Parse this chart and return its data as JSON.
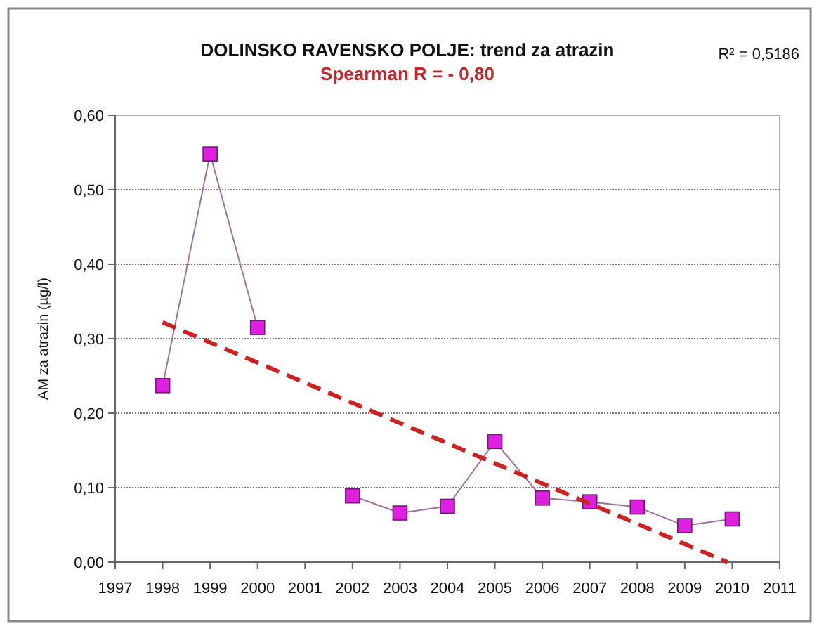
{
  "chart_data": {
    "type": "line",
    "title": "DOLINSKO RAVENSKO POLJE: trend za atrazin",
    "subtitle": "Spearman R = - 0,80",
    "ylabel": "AM za atrazin (µg/l)",
    "annotations": [
      "R² = 0,5186"
    ],
    "x": [
      1998,
      1999,
      2000,
      2001,
      2002,
      2003,
      2004,
      2005,
      2006,
      2007,
      2008,
      2009,
      2010
    ],
    "series": [
      {
        "color": "#e020e0",
        "values": [
          0.237,
          0.548,
          0.315,
          null,
          0.089,
          0.066,
          0.075,
          0.162,
          0.086,
          0.081,
          0.074,
          0.049,
          0.058
        ],
        "marker": "square"
      },
      {
        "type": "line",
        "color": "#cc2222",
        "x": [
          1998,
          2009.9
        ],
        "values": [
          0.322,
          0.0
        ],
        "line_style": "dashed",
        "marker": "none"
      }
    ],
    "xlim": [
      1997,
      2011
    ],
    "xticks": [
      1997,
      1998,
      1999,
      2000,
      2001,
      2002,
      2003,
      2004,
      2005,
      2006,
      2007,
      2008,
      2009,
      2010,
      2011
    ],
    "ylim": [
      0,
      0.6
    ],
    "yticks": [
      {
        "value": 0,
        "label": "0,00"
      },
      {
        "value": 0.1,
        "label": "0,10"
      },
      {
        "value": 0.2,
        "label": "0,20"
      },
      {
        "value": 0.3,
        "label": "0,30"
      },
      {
        "value": 0.4,
        "label": "0,40"
      },
      {
        "value": 0.5,
        "label": "0,50"
      },
      {
        "value": 0.6,
        "label": "0,60"
      }
    ],
    "grid": "y"
  }
}
